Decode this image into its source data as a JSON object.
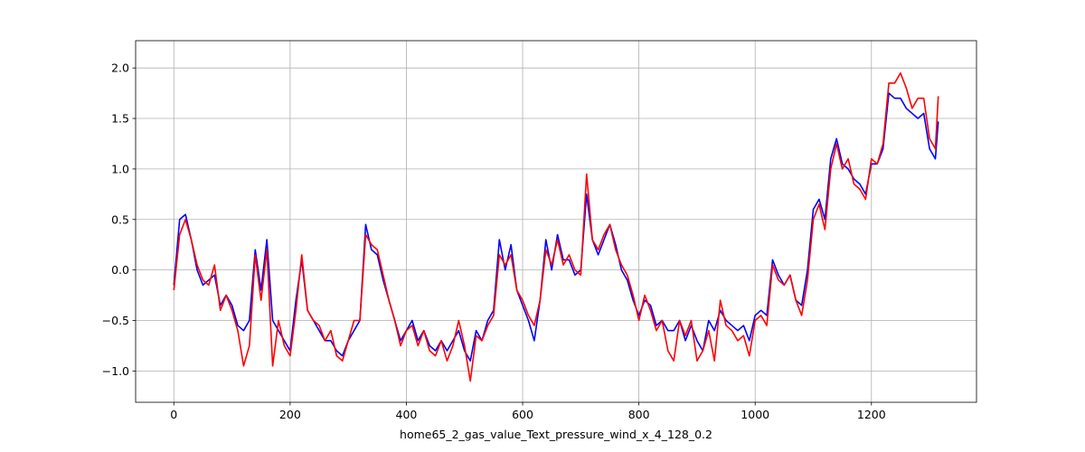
{
  "chart_data": {
    "type": "line",
    "xlabel": "home65_2_gas_value_Text_pressure_wind_x_4_128_0.2",
    "x": [
      0,
      10,
      20,
      30,
      40,
      50,
      60,
      70,
      80,
      90,
      100,
      110,
      120,
      130,
      140,
      150,
      160,
      170,
      180,
      190,
      200,
      210,
      220,
      230,
      240,
      250,
      260,
      270,
      280,
      290,
      300,
      310,
      320,
      330,
      340,
      350,
      360,
      370,
      380,
      390,
      400,
      410,
      420,
      430,
      440,
      450,
      460,
      470,
      480,
      490,
      500,
      510,
      520,
      530,
      540,
      550,
      560,
      570,
      580,
      590,
      600,
      610,
      620,
      630,
      640,
      650,
      660,
      670,
      680,
      690,
      700,
      710,
      720,
      730,
      740,
      750,
      760,
      770,
      780,
      790,
      800,
      810,
      820,
      830,
      840,
      850,
      860,
      870,
      880,
      890,
      900,
      910,
      920,
      930,
      940,
      950,
      960,
      970,
      980,
      990,
      1000,
      1010,
      1020,
      1030,
      1040,
      1050,
      1060,
      1070,
      1080,
      1090,
      1100,
      1110,
      1120,
      1130,
      1140,
      1150,
      1160,
      1170,
      1180,
      1190,
      1200,
      1210,
      1220,
      1230,
      1240,
      1250,
      1260,
      1270,
      1280,
      1290,
      1300,
      1310,
      1315
    ],
    "series": [
      {
        "color": "#0000ff",
        "values": [
          -0.15,
          0.5,
          0.55,
          0.3,
          0.0,
          -0.15,
          -0.1,
          -0.05,
          -0.35,
          -0.25,
          -0.35,
          -0.55,
          -0.6,
          -0.5,
          0.2,
          -0.2,
          0.3,
          -0.5,
          -0.6,
          -0.7,
          -0.8,
          -0.3,
          0.1,
          -0.4,
          -0.5,
          -0.6,
          -0.7,
          -0.7,
          -0.8,
          -0.85,
          -0.7,
          -0.6,
          -0.5,
          0.45,
          0.2,
          0.15,
          -0.1,
          -0.3,
          -0.5,
          -0.7,
          -0.6,
          -0.5,
          -0.7,
          -0.6,
          -0.75,
          -0.8,
          -0.7,
          -0.8,
          -0.7,
          -0.6,
          -0.8,
          -0.9,
          -0.6,
          -0.7,
          -0.5,
          -0.4,
          0.3,
          0.0,
          0.25,
          -0.2,
          -0.35,
          -0.5,
          -0.7,
          -0.3,
          0.3,
          0.0,
          0.35,
          0.1,
          0.1,
          -0.05,
          0.0,
          0.75,
          0.3,
          0.15,
          0.3,
          0.45,
          0.25,
          0.0,
          -0.1,
          -0.3,
          -0.45,
          -0.3,
          -0.35,
          -0.55,
          -0.5,
          -0.6,
          -0.6,
          -0.5,
          -0.7,
          -0.55,
          -0.7,
          -0.8,
          -0.5,
          -0.6,
          -0.4,
          -0.5,
          -0.55,
          -0.6,
          -0.55,
          -0.7,
          -0.45,
          -0.4,
          -0.45,
          0.1,
          -0.05,
          -0.15,
          -0.05,
          -0.3,
          -0.35,
          0.0,
          0.6,
          0.7,
          0.5,
          1.1,
          1.3,
          1.05,
          1.0,
          0.9,
          0.85,
          0.75,
          1.05,
          1.05,
          1.2,
          1.75,
          1.7,
          1.7,
          1.6,
          1.55,
          1.5,
          1.55,
          1.2,
          1.1,
          1.47
        ]
      },
      {
        "color": "#ff0000",
        "values": [
          -0.2,
          0.35,
          0.5,
          0.3,
          0.05,
          -0.1,
          -0.15,
          0.05,
          -0.4,
          -0.25,
          -0.4,
          -0.6,
          -0.95,
          -0.75,
          0.15,
          -0.3,
          0.2,
          -0.95,
          -0.5,
          -0.75,
          -0.85,
          -0.4,
          0.15,
          -0.4,
          -0.5,
          -0.55,
          -0.7,
          -0.6,
          -0.85,
          -0.9,
          -0.7,
          -0.5,
          -0.5,
          0.35,
          0.25,
          0.2,
          -0.05,
          -0.3,
          -0.5,
          -0.75,
          -0.6,
          -0.55,
          -0.75,
          -0.6,
          -0.8,
          -0.85,
          -0.7,
          -0.9,
          -0.75,
          -0.5,
          -0.75,
          -1.1,
          -0.65,
          -0.7,
          -0.55,
          -0.45,
          0.15,
          0.05,
          0.15,
          -0.2,
          -0.3,
          -0.45,
          -0.55,
          -0.3,
          0.2,
          0.05,
          0.3,
          0.05,
          0.15,
          0.0,
          -0.05,
          0.95,
          0.3,
          0.2,
          0.35,
          0.45,
          0.2,
          0.05,
          -0.05,
          -0.25,
          -0.5,
          -0.25,
          -0.4,
          -0.6,
          -0.5,
          -0.8,
          -0.9,
          -0.5,
          -0.65,
          -0.5,
          -0.9,
          -0.8,
          -0.6,
          -0.9,
          -0.3,
          -0.55,
          -0.6,
          -0.7,
          -0.65,
          -0.85,
          -0.5,
          -0.45,
          -0.55,
          0.05,
          -0.1,
          -0.15,
          -0.05,
          -0.3,
          -0.45,
          -0.1,
          0.5,
          0.65,
          0.4,
          1.0,
          1.25,
          1.0,
          1.1,
          0.85,
          0.8,
          0.7,
          1.1,
          1.05,
          1.25,
          1.85,
          1.85,
          1.95,
          1.8,
          1.6,
          1.7,
          1.7,
          1.3,
          1.2,
          1.72
        ]
      }
    ],
    "xlim": [
      -65.75,
      1380.75
    ],
    "ylim": [
      -1.31,
      2.27
    ],
    "xticks": [
      0,
      200,
      400,
      600,
      800,
      1000,
      1200
    ],
    "yticks": [
      {
        "value": -1,
        "label": "−1.0"
      },
      {
        "value": -0.5,
        "label": "−0.5"
      },
      {
        "value": 0,
        "label": "0.0"
      },
      0.5,
      {
        "value": 1,
        "label": "1.0"
      },
      1.5,
      {
        "value": 2,
        "label": "2.0"
      }
    ],
    "grid": true
  }
}
